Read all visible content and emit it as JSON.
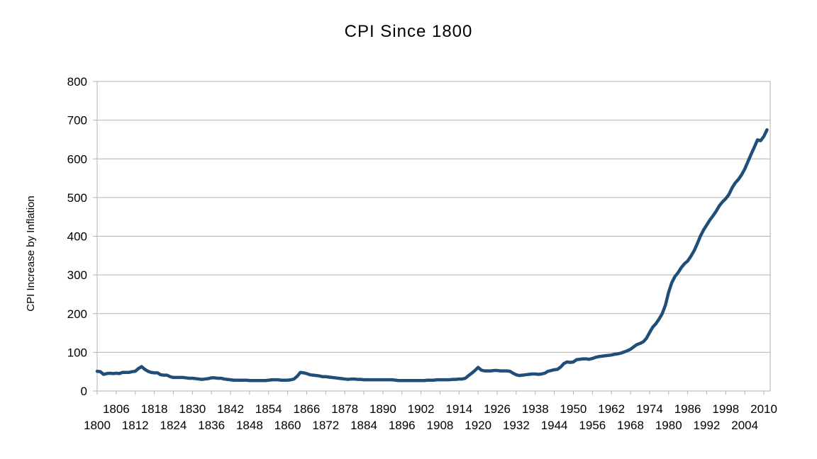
{
  "chart_data": {
    "type": "line",
    "title": "CPI Since 1800",
    "xlabel": "",
    "ylabel": "CPI Increase by Inflation",
    "xlim": [
      1800,
      2012
    ],
    "ylim": [
      0,
      800
    ],
    "yticks": [
      0,
      100,
      200,
      300,
      400,
      500,
      600,
      700,
      800
    ],
    "xticks_upper": [
      1806,
      1818,
      1830,
      1842,
      1854,
      1866,
      1878,
      1890,
      1902,
      1914,
      1926,
      1938,
      1950,
      1962,
      1974,
      1986,
      1998,
      2010
    ],
    "xticks_lower": [
      1800,
      1812,
      1824,
      1836,
      1848,
      1860,
      1872,
      1884,
      1896,
      1908,
      1920,
      1932,
      1944,
      1956,
      1968,
      1980,
      1992,
      2004
    ],
    "grid": "horizontal",
    "legend": "none",
    "series": [
      {
        "color": "#1f4e79",
        "points": [
          [
            1800,
            51
          ],
          [
            1801,
            50
          ],
          [
            1802,
            43
          ],
          [
            1803,
            45
          ],
          [
            1804,
            46
          ],
          [
            1805,
            45
          ],
          [
            1806,
            46
          ],
          [
            1807,
            45
          ],
          [
            1808,
            48
          ],
          [
            1809,
            48
          ],
          [
            1810,
            48
          ],
          [
            1811,
            50
          ],
          [
            1812,
            51
          ],
          [
            1813,
            58
          ],
          [
            1814,
            63
          ],
          [
            1815,
            56
          ],
          [
            1816,
            51
          ],
          [
            1817,
            48
          ],
          [
            1818,
            47
          ],
          [
            1819,
            47
          ],
          [
            1820,
            42
          ],
          [
            1821,
            41
          ],
          [
            1822,
            41
          ],
          [
            1823,
            37
          ],
          [
            1824,
            35
          ],
          [
            1825,
            35
          ],
          [
            1826,
            35
          ],
          [
            1827,
            35
          ],
          [
            1828,
            34
          ],
          [
            1829,
            33
          ],
          [
            1830,
            33
          ],
          [
            1831,
            32
          ],
          [
            1832,
            31
          ],
          [
            1833,
            30
          ],
          [
            1834,
            31
          ],
          [
            1835,
            32
          ],
          [
            1836,
            34
          ],
          [
            1837,
            34
          ],
          [
            1838,
            33
          ],
          [
            1839,
            33
          ],
          [
            1840,
            31
          ],
          [
            1841,
            30
          ],
          [
            1842,
            29
          ],
          [
            1843,
            28
          ],
          [
            1844,
            28
          ],
          [
            1845,
            28
          ],
          [
            1846,
            28
          ],
          [
            1847,
            28
          ],
          [
            1848,
            27
          ],
          [
            1849,
            27
          ],
          [
            1850,
            27
          ],
          [
            1851,
            27
          ],
          [
            1852,
            27
          ],
          [
            1853,
            27
          ],
          [
            1854,
            28
          ],
          [
            1855,
            29
          ],
          [
            1856,
            29
          ],
          [
            1857,
            29
          ],
          [
            1858,
            28
          ],
          [
            1859,
            28
          ],
          [
            1860,
            28
          ],
          [
            1861,
            29
          ],
          [
            1862,
            31
          ],
          [
            1863,
            38
          ],
          [
            1864,
            48
          ],
          [
            1865,
            47
          ],
          [
            1866,
            45
          ],
          [
            1867,
            42
          ],
          [
            1868,
            41
          ],
          [
            1869,
            40
          ],
          [
            1870,
            39
          ],
          [
            1871,
            37
          ],
          [
            1872,
            37
          ],
          [
            1873,
            36
          ],
          [
            1874,
            35
          ],
          [
            1875,
            34
          ],
          [
            1876,
            33
          ],
          [
            1877,
            32
          ],
          [
            1878,
            31
          ],
          [
            1879,
            30
          ],
          [
            1880,
            31
          ],
          [
            1881,
            31
          ],
          [
            1882,
            30
          ],
          [
            1883,
            30
          ],
          [
            1884,
            29
          ],
          [
            1885,
            29
          ],
          [
            1886,
            29
          ],
          [
            1887,
            29
          ],
          [
            1888,
            29
          ],
          [
            1889,
            29
          ],
          [
            1890,
            29
          ],
          [
            1891,
            29
          ],
          [
            1892,
            29
          ],
          [
            1893,
            29
          ],
          [
            1894,
            28
          ],
          [
            1895,
            27
          ],
          [
            1896,
            27
          ],
          [
            1897,
            27
          ],
          [
            1898,
            27
          ],
          [
            1899,
            27
          ],
          [
            1900,
            27
          ],
          [
            1901,
            27
          ],
          [
            1902,
            27
          ],
          [
            1903,
            27
          ],
          [
            1904,
            28
          ],
          [
            1905,
            28
          ],
          [
            1906,
            28
          ],
          [
            1907,
            29
          ],
          [
            1908,
            29
          ],
          [
            1909,
            29
          ],
          [
            1910,
            29
          ],
          [
            1911,
            29
          ],
          [
            1912,
            30
          ],
          [
            1913,
            30
          ],
          [
            1914,
            31
          ],
          [
            1915,
            31
          ],
          [
            1916,
            33
          ],
          [
            1917,
            40
          ],
          [
            1918,
            46
          ],
          [
            1919,
            53
          ],
          [
            1920,
            61
          ],
          [
            1921,
            54
          ],
          [
            1922,
            52
          ],
          [
            1923,
            52
          ],
          [
            1924,
            52
          ],
          [
            1925,
            53
          ],
          [
            1926,
            53
          ],
          [
            1927,
            52
          ],
          [
            1928,
            52
          ],
          [
            1929,
            52
          ],
          [
            1930,
            51
          ],
          [
            1931,
            46
          ],
          [
            1932,
            42
          ],
          [
            1933,
            40
          ],
          [
            1934,
            41
          ],
          [
            1935,
            42
          ],
          [
            1936,
            43
          ],
          [
            1937,
            44
          ],
          [
            1938,
            44
          ],
          [
            1939,
            43
          ],
          [
            1940,
            44
          ],
          [
            1941,
            46
          ],
          [
            1942,
            51
          ],
          [
            1943,
            53
          ],
          [
            1944,
            55
          ],
          [
            1945,
            56
          ],
          [
            1946,
            62
          ],
          [
            1947,
            71
          ],
          [
            1948,
            75
          ],
          [
            1949,
            74
          ],
          [
            1950,
            75
          ],
          [
            1951,
            81
          ],
          [
            1952,
            82
          ],
          [
            1953,
            83
          ],
          [
            1954,
            83
          ],
          [
            1955,
            82
          ],
          [
            1956,
            84
          ],
          [
            1957,
            87
          ],
          [
            1958,
            89
          ],
          [
            1959,
            90
          ],
          [
            1960,
            91
          ],
          [
            1961,
            92
          ],
          [
            1962,
            93
          ],
          [
            1963,
            95
          ],
          [
            1964,
            96
          ],
          [
            1965,
            98
          ],
          [
            1966,
            101
          ],
          [
            1967,
            104
          ],
          [
            1968,
            108
          ],
          [
            1969,
            114
          ],
          [
            1970,
            120
          ],
          [
            1971,
            123
          ],
          [
            1972,
            127
          ],
          [
            1973,
            136
          ],
          [
            1974,
            151
          ],
          [
            1975,
            165
          ],
          [
            1976,
            174
          ],
          [
            1977,
            186
          ],
          [
            1978,
            200
          ],
          [
            1979,
            222
          ],
          [
            1980,
            255
          ],
          [
            1981,
            280
          ],
          [
            1982,
            296
          ],
          [
            1983,
            306
          ],
          [
            1984,
            319
          ],
          [
            1985,
            329
          ],
          [
            1986,
            336
          ],
          [
            1987,
            348
          ],
          [
            1988,
            362
          ],
          [
            1989,
            380
          ],
          [
            1990,
            400
          ],
          [
            1991,
            416
          ],
          [
            1992,
            429
          ],
          [
            1993,
            442
          ],
          [
            1994,
            453
          ],
          [
            1995,
            465
          ],
          [
            1996,
            479
          ],
          [
            1997,
            489
          ],
          [
            1998,
            497
          ],
          [
            1999,
            508
          ],
          [
            2000,
            525
          ],
          [
            2001,
            538
          ],
          [
            2002,
            547
          ],
          [
            2003,
            559
          ],
          [
            2004,
            574
          ],
          [
            2005,
            593
          ],
          [
            2006,
            612
          ],
          [
            2007,
            630
          ],
          [
            2008,
            649
          ],
          [
            2009,
            647
          ],
          [
            2010,
            658
          ],
          [
            2011,
            675
          ]
        ]
      }
    ]
  }
}
